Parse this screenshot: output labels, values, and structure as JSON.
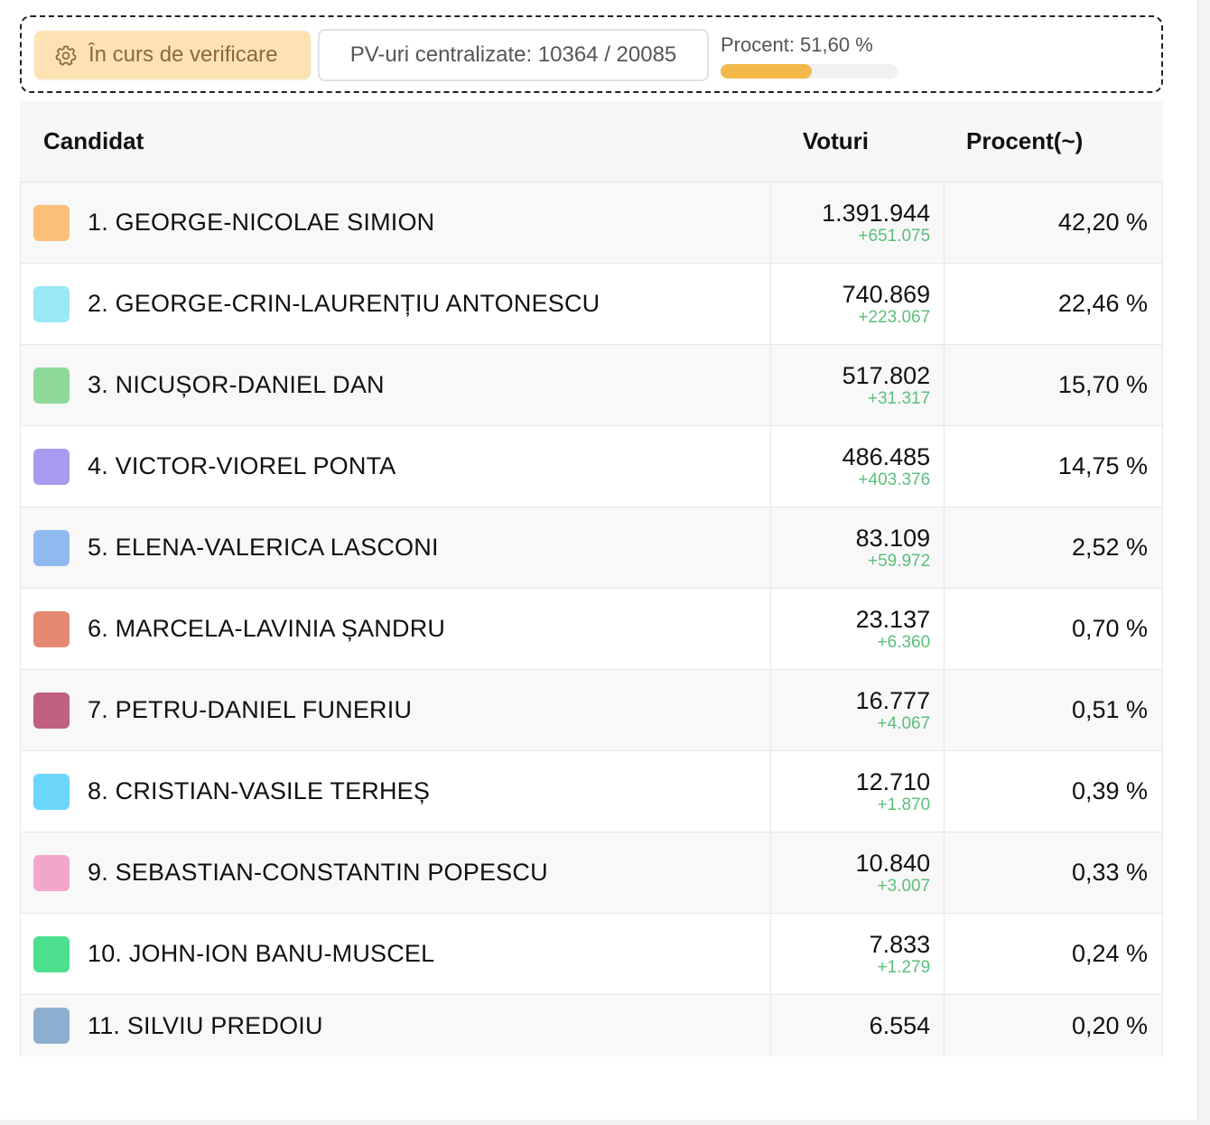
{
  "status": {
    "verification_label": "În curs de verificare",
    "pv_label": "PV-uri centralizate: 10364 / 20085",
    "percent_label": "Procent: 51,60 %",
    "percent_value": 0.516,
    "colors": {
      "verification_bg": "#fde2b3",
      "progress_fill": "#f2b94a"
    }
  },
  "table": {
    "headers": {
      "candidate": "Candidat",
      "votes": "Voturi",
      "percent": "Procent(~)"
    },
    "rows": [
      {
        "name": "1. GEORGE-NICOLAE SIMION",
        "votes": "1.391.944",
        "delta": "+651.075",
        "percent": "42,20 %",
        "color": "#fbbf77"
      },
      {
        "name": "2. GEORGE-CRIN-LAURENȚIU ANTONESCU",
        "votes": "740.869",
        "delta": "+223.067",
        "percent": "22,46 %",
        "color": "#99e8f5"
      },
      {
        "name": "3. NICUȘOR-DANIEL DAN",
        "votes": "517.802",
        "delta": "+31.317",
        "percent": "15,70 %",
        "color": "#8fd99a"
      },
      {
        "name": "4. VICTOR-VIOREL PONTA",
        "votes": "486.485",
        "delta": "+403.376",
        "percent": "14,75 %",
        "color": "#a79bf0"
      },
      {
        "name": "5. ELENA-VALERICA LASCONI",
        "votes": "83.109",
        "delta": "+59.972",
        "percent": "2,52 %",
        "color": "#8fbaf0"
      },
      {
        "name": "6. MARCELA-LAVINIA ȘANDRU",
        "votes": "23.137",
        "delta": "+6.360",
        "percent": "0,70 %",
        "color": "#e58a72"
      },
      {
        "name": "7. PETRU-DANIEL FUNERIU",
        "votes": "16.777",
        "delta": "+4.067",
        "percent": "0,51 %",
        "color": "#c0607e"
      },
      {
        "name": "8. CRISTIAN-VASILE TERHEȘ",
        "votes": "12.710",
        "delta": "+1.870",
        "percent": "0,39 %",
        "color": "#6cd6fb"
      },
      {
        "name": "9. SEBASTIAN-CONSTANTIN POPESCU",
        "votes": "10.840",
        "delta": "+3.007",
        "percent": "0,33 %",
        "color": "#f3a6cb"
      },
      {
        "name": "10. JOHN-ION BANU-MUSCEL",
        "votes": "7.833",
        "delta": "+1.279",
        "percent": "0,24 %",
        "color": "#4be08e"
      },
      {
        "name": "11. SILVIU PREDOIU",
        "votes": "6.554",
        "delta": "",
        "percent": "0,20 %",
        "color": "#8eaed0"
      }
    ]
  }
}
